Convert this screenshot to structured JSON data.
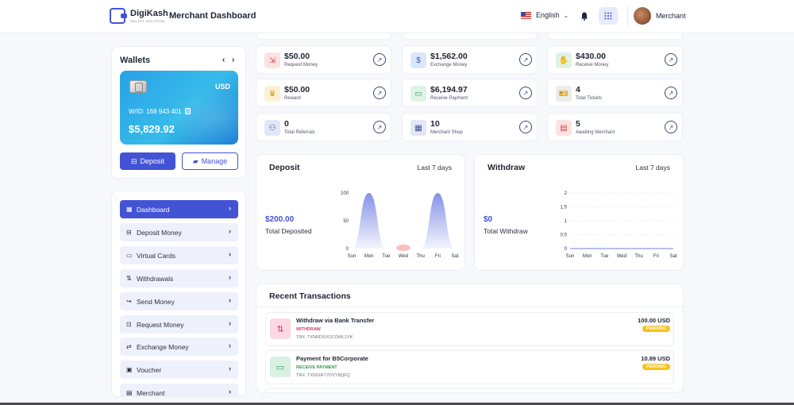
{
  "brand": {
    "name": "DigiKash",
    "subtitle": "WALLET SOLUTION"
  },
  "header": {
    "title": "Merchant Dashboard",
    "language": "English",
    "user": "Merchant"
  },
  "wallet": {
    "title": "Wallets",
    "prev": "‹",
    "next": "›",
    "currency": "USD",
    "wid": "W/ID: 168 943 401",
    "balance": "$5,829.92",
    "deposit_label": "Deposit",
    "manage_label": "Manage"
  },
  "menu": [
    {
      "label": "Dashboard",
      "icon": "dashboard-icon",
      "glyph": "▦",
      "active": true
    },
    {
      "label": "Deposit Money",
      "icon": "deposit-icon",
      "glyph": "⊟"
    },
    {
      "label": "Virtual Cards",
      "icon": "card-icon",
      "glyph": "▭"
    },
    {
      "label": "Withdrawals",
      "icon": "withdraw-icon",
      "glyph": "⇅"
    },
    {
      "label": "Send Money",
      "icon": "send-icon",
      "glyph": "↪"
    },
    {
      "label": "Request Money",
      "icon": "request-icon",
      "glyph": "⊡"
    },
    {
      "label": "Exchange Money",
      "icon": "exchange-icon",
      "glyph": "⇄"
    },
    {
      "label": "Voucher",
      "icon": "voucher-icon",
      "glyph": "▣"
    },
    {
      "label": "Merchant",
      "icon": "merchant-icon",
      "glyph": "▤"
    }
  ],
  "stats": [
    {
      "value": "$50.00",
      "label": "Request Money",
      "icon": "request-money-icon",
      "glyph": "⇲",
      "bg": "#fde2e2",
      "fg": "#d9434a"
    },
    {
      "value": "$1,562.00",
      "label": "Exchange Money",
      "icon": "exchange-money-icon",
      "glyph": "$",
      "bg": "#dbe6fb",
      "fg": "#2f5fc5"
    },
    {
      "value": "$430.00",
      "label": "Receive Money",
      "icon": "receive-money-icon",
      "glyph": "✋",
      "bg": "#def3e4",
      "fg": "#2d9a4e"
    },
    {
      "value": "$50.00",
      "label": "Reward",
      "icon": "reward-icon",
      "glyph": "♛",
      "bg": "#fdf0d4",
      "fg": "#d69a10"
    },
    {
      "value": "$6,194.97",
      "label": "Receive Payment",
      "icon": "receive-payment-icon",
      "glyph": "▭",
      "bg": "#def3e4",
      "fg": "#2d9a4e"
    },
    {
      "value": "4",
      "label": "Total Tickets",
      "icon": "ticket-icon",
      "glyph": "🎫",
      "bg": "#ececec",
      "fg": "#444"
    },
    {
      "value": "0",
      "label": "Total Referrals",
      "icon": "referral-icon",
      "glyph": "⚇",
      "bg": "#e2e7f7",
      "fg": "#3f4f8f"
    },
    {
      "value": "10",
      "label": "Merchant Shop",
      "icon": "shop-icon",
      "glyph": "▦",
      "bg": "#e2e7f7",
      "fg": "#3f4f8f"
    },
    {
      "value": "5",
      "label": "Awaiting Merchant",
      "icon": "awaiting-icon",
      "glyph": "▤",
      "bg": "#fde2e2",
      "fg": "#d9434a"
    }
  ],
  "deposit": {
    "title": "Deposit",
    "period": "Last 7 days",
    "amount": "$200.00",
    "amount_label": "Total Deposited"
  },
  "withdraw": {
    "title": "Withdraw",
    "period": "Last 7 days",
    "amount": "$0",
    "amount_label": "Total Withdraw"
  },
  "chart_data": [
    {
      "type": "area",
      "title": "Deposit",
      "x": [
        "Sun",
        "Mon",
        "Tue",
        "Wed",
        "Thu",
        "Fri",
        "Sat"
      ],
      "series": [
        {
          "name": "",
          "values": [
            0,
            100,
            0,
            0,
            0,
            100,
            0
          ]
        }
      ],
      "yticks": [
        "0",
        "50",
        "100"
      ],
      "ylim": [
        0,
        100
      ],
      "accent": "#6f7fe3"
    },
    {
      "type": "area",
      "title": "Withdraw",
      "x": [
        "Sun",
        "Mon",
        "Tue",
        "Wed",
        "Thu",
        "Fri",
        "Sat"
      ],
      "series": [
        {
          "name": "",
          "values": [
            0,
            0,
            0,
            0,
            0,
            0,
            0
          ]
        }
      ],
      "yticks": [
        "0",
        "0.5",
        "1",
        "1.5",
        "2"
      ],
      "ylim": [
        0,
        2
      ],
      "grid": true
    }
  ],
  "transactions": {
    "title": "Recent Transactions",
    "items": [
      {
        "name": "Withdraw via Bank Transfer",
        "type": "WITHDRAW",
        "trx": "TRX: TXNRDSVOCOWL1YK",
        "amount": "100.00 USD",
        "status": "PENDING",
        "type_color": "#d43b6a",
        "icon": "withdraw-icon",
        "glyph": "⇅",
        "bg": "#fbd9e2",
        "fg": "#d43b6a"
      },
      {
        "name": "Payment for B5Corporate",
        "type": "RECEIVE PAYMENT",
        "trx": "TRX: TXNS0F77OVY8QFQ",
        "amount": "10.89 USD",
        "status": "PENDING",
        "type_color": "#2d9a4e",
        "icon": "receive-payment-icon",
        "glyph": "▭",
        "bg": "#d9f1e0",
        "fg": "#2d9a4e"
      }
    ]
  }
}
